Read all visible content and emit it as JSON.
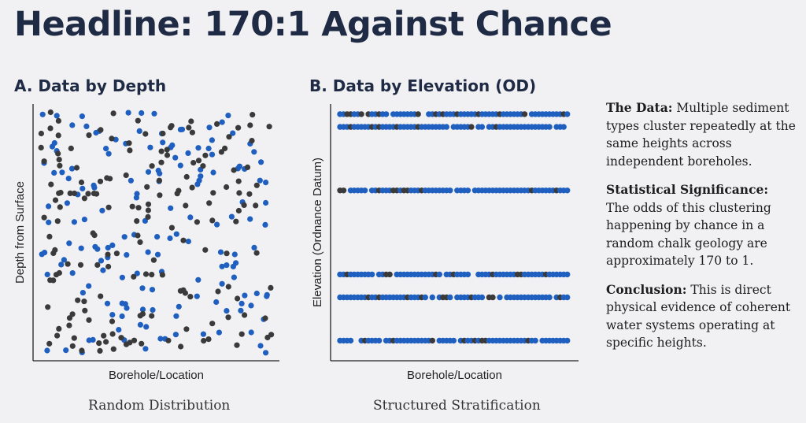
{
  "headline": "Headline: 170:1 Against Chance",
  "panel_a": {
    "title": "A. Data by Depth",
    "caption": "Random Distribution"
  },
  "panel_b": {
    "title": "B. Data by Elevation (OD)",
    "caption": "Structured Stratification"
  },
  "sidebar": [
    {
      "label": "The Data:",
      "text": "Multiple sediment types cluster repeatedly at the same heights across independent boreholes."
    },
    {
      "label": "Statistical Significance:",
      "text": "The odds of this clustering happening by chance in a random chalk geology are approximately 170 to 1."
    },
    {
      "label": "Conclusion:",
      "text": "This is direct physical evidence of coherent water systems operating at specific heights."
    }
  ],
  "colors": {
    "blue": "#1f5fbf",
    "dark": "#3a3a3a",
    "axis": "#222222",
    "text": "#1f2a44"
  },
  "chart_data": [
    {
      "type": "scatter",
      "title": "A. Data by Depth",
      "xlabel": "Borehole/Location",
      "ylabel": "Depth from Surface",
      "xlim": [
        0,
        100
      ],
      "ylim": [
        0,
        100
      ],
      "ticks": false,
      "grid": false,
      "series": [
        {
          "name": "blue",
          "color": "#1f5fbf",
          "seed": 7,
          "count": 160
        },
        {
          "name": "dark",
          "color": "#3a3a3a",
          "seed": 23,
          "count": 170
        }
      ]
    },
    {
      "type": "scatter",
      "title": "B. Data by Elevation (OD)",
      "xlabel": "Borehole/Location",
      "ylabel": "Elevation (Ordnance Datum)",
      "xlim": [
        0,
        100
      ],
      "ylim": [
        0,
        100
      ],
      "ticks": false,
      "grid": false,
      "bands": [
        96,
        91,
        66,
        33,
        24,
        7
      ],
      "series": [
        {
          "name": "blue",
          "color": "#1f5fbf"
        },
        {
          "name": "dark",
          "color": "#3a3a3a"
        }
      ]
    }
  ]
}
